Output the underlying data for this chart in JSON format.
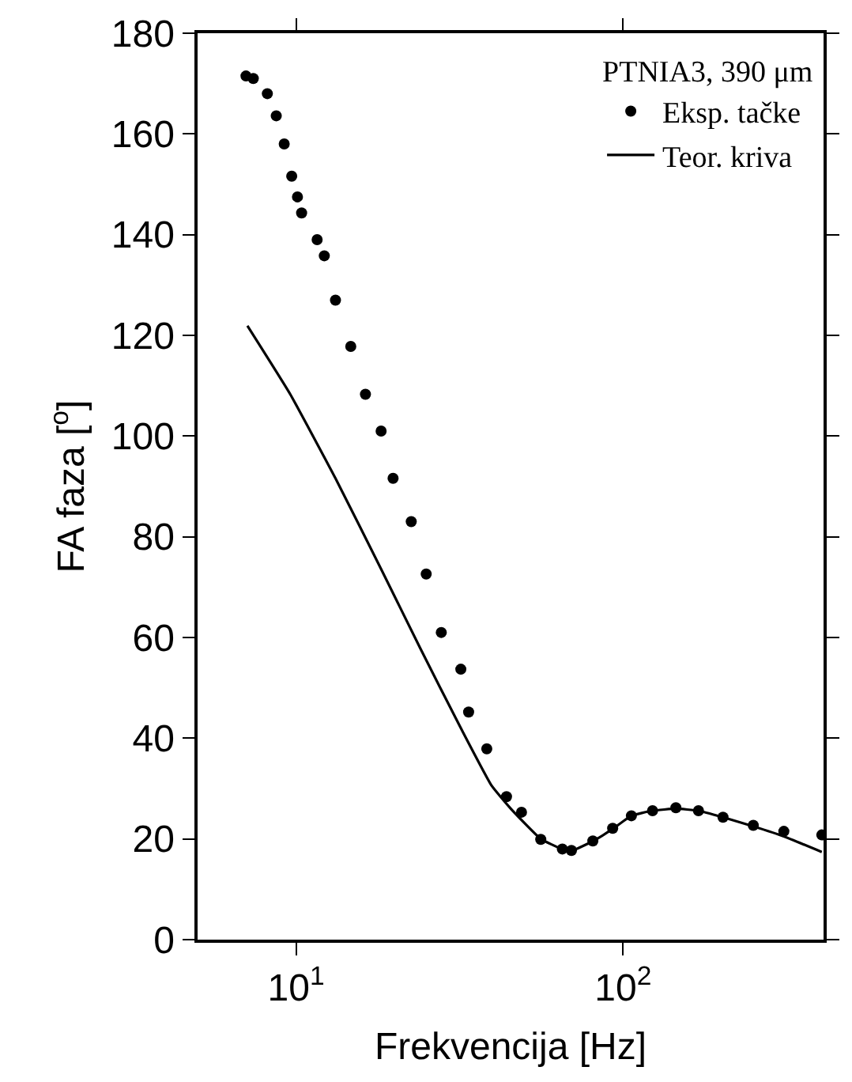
{
  "chart_data": {
    "type": "scatter",
    "xlabel": "Frekvencija [Hz]",
    "ylabel": "FA faza [$^{o}$]",
    "legend_title": "PTNIA3, 390 μm",
    "log": "x",
    "xlim": [
      5,
      410
    ],
    "xticks": [
      {
        "value": 10,
        "label": "10$^{1}$"
      },
      {
        "value": 100,
        "label": "10$^{2}$"
      }
    ],
    "ylim": [
      0,
      180
    ],
    "yticks": [
      0,
      20,
      40,
      60,
      80,
      100,
      120,
      140,
      160,
      180
    ],
    "legend": "top right",
    "series": [
      {
        "name": "Eksp. tačke",
        "marker": "circle",
        "color": "#000000",
        "x": [
          7.03,
          7.4,
          8.17,
          8.7,
          9.2,
          9.7,
          10.1,
          10.4,
          11.6,
          12.2,
          13.2,
          14.7,
          16.3,
          18.2,
          19.8,
          22.5,
          25.0,
          27.8,
          31.9,
          33.7,
          38.3,
          44.0,
          48.9,
          56.0,
          65.2,
          69.5,
          80.8,
          92.9,
          106,
          123,
          145,
          170,
          202,
          250,
          310,
          405
        ],
        "values": [
          171.5,
          171,
          168,
          163.6,
          158,
          151.6,
          147.5,
          144.3,
          139,
          135.8,
          127,
          117.8,
          108.3,
          101,
          91.6,
          83,
          72.6,
          61,
          53.7,
          45.2,
          37.9,
          28.4,
          25.3,
          19.9,
          18,
          17.7,
          19.6,
          22.1,
          24.6,
          25.6,
          26.2,
          25.6,
          24.3,
          22.7,
          21.5,
          20.8
        ]
      },
      {
        "name": "Teor. kriva",
        "type": "line",
        "line_style": "solid",
        "color": "#000000",
        "x": [
          7.1,
          9.6,
          13.2,
          18.2,
          24.0,
          31.9,
          39.6,
          45.5,
          56,
          65,
          70,
          81,
          93,
          106,
          123,
          145,
          170,
          202,
          250,
          310,
          405
        ],
        "values": [
          121.9,
          108.3,
          91.6,
          73.6,
          57.8,
          42,
          30.6,
          25.9,
          20,
          18,
          17.7,
          19.6,
          22,
          24.6,
          25.6,
          26,
          25.6,
          24.3,
          22.5,
          20.5,
          17.4
        ]
      }
    ]
  }
}
